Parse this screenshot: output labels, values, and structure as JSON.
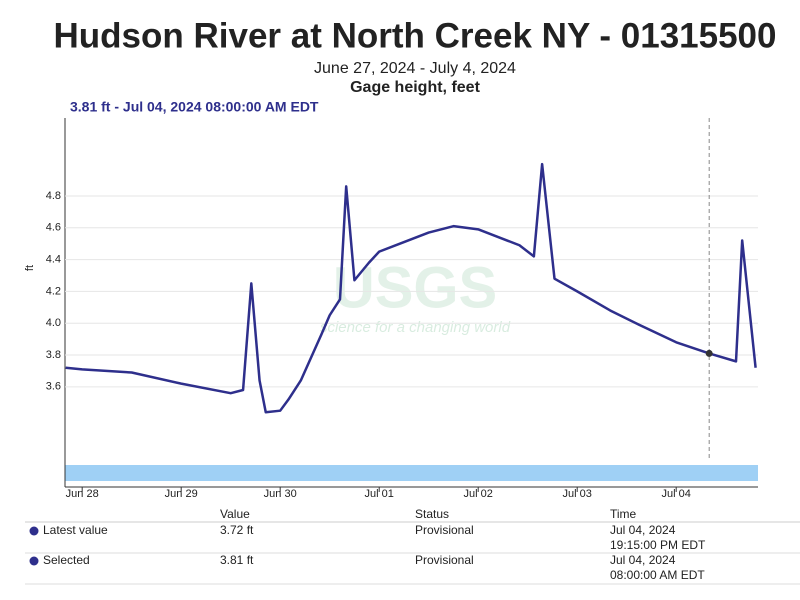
{
  "chart_data": {
    "type": "line",
    "title": "Hudson River at North Creek NY - 01315500",
    "subtitle": "June 27, 2024 - July 4, 2024",
    "parameter": "Gage height, feet",
    "selected_label": "3.81 ft - Jul 04, 2024 08:00:00 AM EDT",
    "y_label": "ft",
    "watermark": "USGS",
    "watermark_tagline": "science for a changing world",
    "color": "#2e2f8c",
    "x": [
      "2024-06-27T20:00",
      "2024-06-28T00:00",
      "2024-06-28T12:00",
      "2024-06-29T00:00",
      "2024-06-29T12:00",
      "2024-06-29T15:00",
      "2024-06-29T17:00",
      "2024-06-29T19:00",
      "2024-06-29T20:30",
      "2024-06-30T00:00",
      "2024-06-30T02:00",
      "2024-06-30T05:00",
      "2024-06-30T10:00",
      "2024-06-30T12:00",
      "2024-06-30T14:30",
      "2024-06-30T16:00",
      "2024-06-30T18:00",
      "2024-06-30T21:30",
      "2024-07-01T00:00",
      "2024-07-01T05:00",
      "2024-07-01T12:00",
      "2024-07-01T18:00",
      "2024-07-02T00:00",
      "2024-07-02T05:00",
      "2024-07-02T10:00",
      "2024-07-02T13:30",
      "2024-07-02T15:30",
      "2024-07-02T18:30",
      "2024-07-03T00:00",
      "2024-07-03T08:00",
      "2024-07-03T15:00",
      "2024-07-04T00:00",
      "2024-07-04T08:00",
      "2024-07-04T14:30",
      "2024-07-04T16:00",
      "2024-07-04T19:15"
    ],
    "values": [
      3.72,
      3.71,
      3.69,
      3.62,
      3.56,
      3.58,
      4.25,
      3.64,
      3.44,
      3.45,
      3.52,
      3.64,
      3.93,
      4.05,
      4.15,
      4.86,
      4.27,
      4.38,
      4.45,
      4.5,
      4.57,
      4.61,
      4.59,
      4.54,
      4.49,
      4.42,
      5.0,
      4.28,
      4.2,
      4.08,
      3.99,
      3.88,
      3.81,
      3.76,
      4.52,
      3.72
    ],
    "selected": {
      "x": "2024-07-04T08:00",
      "value": 3.81
    },
    "xlim": [
      "2024-06-27T19:50",
      "2024-07-04T19:50"
    ],
    "xticks": [
      {
        "value": "2024-06-28T00:00",
        "label": "Jun 28"
      },
      {
        "value": "2024-06-29T00:00",
        "label": "Jun 29"
      },
      {
        "value": "2024-06-30T00:00",
        "label": "Jun 30"
      },
      {
        "value": "2024-07-01T00:00",
        "label": "Jul 01"
      },
      {
        "value": "2024-07-02T00:00",
        "label": "Jul 02"
      },
      {
        "value": "2024-07-03T00:00",
        "label": "Jul 03"
      },
      {
        "value": "2024-07-04T00:00",
        "label": "Jul 04"
      }
    ],
    "ylim": [
      3.14,
      5.29
    ],
    "yticks": [
      {
        "value": 3.6,
        "label": "3.6"
      },
      {
        "value": 3.8,
        "label": "3.8"
      },
      {
        "value": 4.0,
        "label": "4.0"
      },
      {
        "value": 4.2,
        "label": "4.2"
      },
      {
        "value": 4.4,
        "label": "4.4"
      },
      {
        "value": 4.6,
        "label": "4.6"
      },
      {
        "value": 4.8,
        "label": "4.8"
      }
    ],
    "grid": true
  },
  "table": {
    "columns": [
      "Value",
      "Status",
      "Time"
    ],
    "rows": [
      [
        "Latest value",
        "3.72 ft",
        "Provisional",
        "Jul 04, 2024",
        "19:15:00 PM EDT"
      ],
      [
        "Selected",
        "3.81 ft",
        "Provisional",
        "Jul 04, 2024",
        "08:00:00 AM EDT"
      ]
    ]
  }
}
